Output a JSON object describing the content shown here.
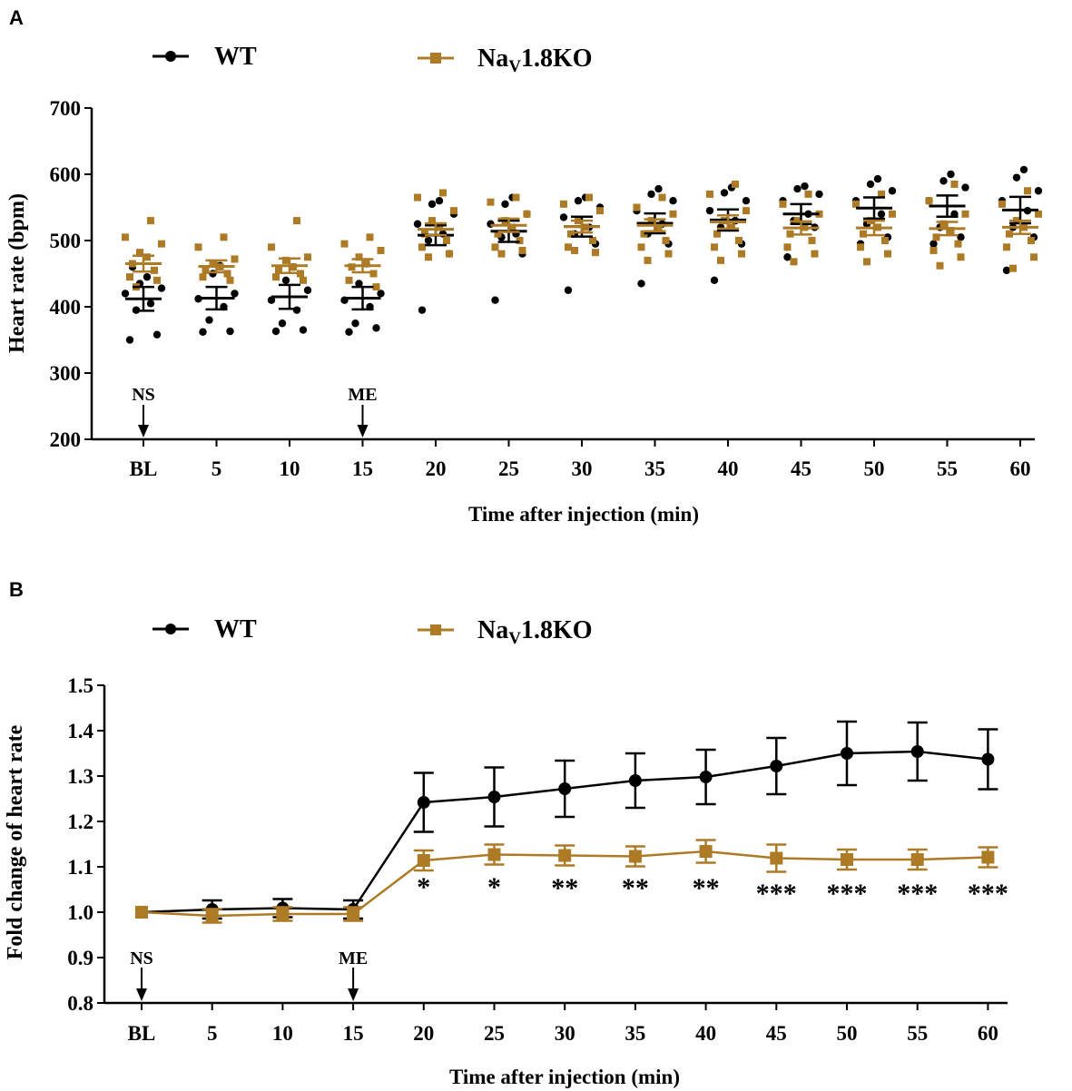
{
  "colors": {
    "wt": "#000000",
    "ko": "#AD7A26",
    "axis": "#000000"
  },
  "legend": {
    "wt": "WT",
    "ko_prefix": "Na",
    "ko_sub": "V",
    "ko_suffix": "1.8KO"
  },
  "chart_data": [
    {
      "panel": "A",
      "type": "scatter",
      "ylabel": "Heart rate (bpm)",
      "xlabel": "Time after injection (min)",
      "categories": [
        "BL",
        "5",
        "10",
        "15",
        "20",
        "25",
        "30",
        "35",
        "40",
        "45",
        "50",
        "55",
        "60"
      ],
      "ylim": [
        200,
        700
      ],
      "yticks": [
        200,
        300,
        400,
        500,
        600,
        700
      ],
      "annotations": [
        {
          "text": "NS",
          "category": "BL"
        },
        {
          "text": "ME",
          "category": "15"
        }
      ],
      "series": [
        {
          "name": "WT",
          "marker": "circle",
          "mean": [
            412,
            413,
            415,
            413,
            508,
            514,
            521,
            526,
            531,
            540,
            549,
            552,
            546
          ],
          "sem": [
            18,
            17,
            18,
            17,
            15,
            16,
            15,
            15,
            16,
            15,
            16,
            16,
            20
          ],
          "points": [
            [
              350,
              358,
              395,
              405,
              420,
              428,
              435,
              445,
              460
            ],
            [
              362,
              363,
              380,
              400,
              412,
              420,
              450,
              462
            ],
            [
              363,
              365,
              375,
              395,
              410,
              425,
              440,
              460
            ],
            [
              362,
              368,
              375,
              400,
              410,
              420,
              435,
              465
            ],
            [
              395,
              480,
              500,
              510,
              525,
              540,
              555,
              560
            ],
            [
              410,
              480,
              505,
              510,
              525,
              540,
              555,
              565
            ],
            [
              425,
              495,
              510,
              520,
              535,
              550,
              560,
              565
            ],
            [
              435,
              495,
              510,
              525,
              545,
              560,
              570,
              578
            ],
            [
              440,
              495,
              520,
              530,
              545,
              560,
              572,
              580
            ],
            [
              475,
              520,
              530,
              540,
              560,
              570,
              578,
              582
            ],
            [
              495,
              505,
              525,
              540,
              560,
              575,
              585,
              593
            ],
            [
              495,
              505,
              520,
              540,
              560,
              580,
              590,
              600
            ],
            [
              455,
              505,
              520,
              545,
              560,
              575,
              595,
              607
            ]
          ]
        },
        {
          "name": "NaV1.8KO",
          "marker": "square",
          "mean": [
            465,
            461,
            462,
            462,
            517,
            523,
            521,
            523,
            528,
            519,
            519,
            518,
            520
          ],
          "sem": [
            12,
            9,
            11,
            10,
            9,
            10,
            9,
            9,
            10,
            10,
            11,
            10,
            10
          ],
          "points": [
            [
              530,
              505,
              495,
              482,
              475,
              465,
              455,
              445,
              440,
              430
            ],
            [
              505,
              490,
              472,
              465,
              460,
              455,
              450,
              445,
              440
            ],
            [
              530,
              490,
              475,
              470,
              460,
              455,
              450,
              445,
              440
            ],
            [
              505,
              495,
              485,
              475,
              465,
              460,
              450,
              440,
              430
            ],
            [
              572,
              565,
              545,
              530,
              520,
              510,
              500,
              490,
              480,
              475
            ],
            [
              565,
              558,
              540,
              530,
              520,
              510,
              500,
              490,
              485,
              480
            ],
            [
              565,
              555,
              545,
              530,
              520,
              510,
              500,
              490,
              482,
              485
            ],
            [
              565,
              550,
              540,
              530,
              520,
              510,
              500,
              490,
              480,
              470
            ],
            [
              585,
              570,
              545,
              530,
              520,
              510,
              500,
              490,
              480,
              470
            ],
            [
              570,
              555,
              540,
              530,
              520,
              510,
              500,
              490,
              480,
              468
            ],
            [
              570,
              555,
              540,
              530,
              520,
              510,
              500,
              490,
              480,
              468
            ],
            [
              585,
              560,
              540,
              525,
              515,
              505,
              495,
              485,
              475,
              462
            ],
            [
              575,
              555,
              540,
              530,
              520,
              510,
              500,
              490,
              475,
              458
            ]
          ]
        }
      ]
    },
    {
      "panel": "B",
      "type": "line",
      "ylabel": "Fold change of heart rate",
      "xlabel": "Time after injection (min)",
      "categories": [
        "BL",
        "5",
        "10",
        "15",
        "20",
        "25",
        "30",
        "35",
        "40",
        "45",
        "50",
        "55",
        "60"
      ],
      "ylim": [
        0.8,
        1.5
      ],
      "yticks": [
        "0.8",
        "0.9",
        "1.0",
        "1.1",
        "1.2",
        "1.3",
        "1.4",
        "1.5"
      ],
      "annotations": [
        {
          "text": "NS",
          "category": "BL"
        },
        {
          "text": "ME",
          "category": "15"
        }
      ],
      "significance": [
        "",
        "",
        "",
        "",
        "*",
        "*",
        "**",
        "**",
        "**",
        "***",
        "***",
        "***",
        "***"
      ],
      "series": [
        {
          "name": "WT",
          "marker": "circle",
          "values": [
            1.0,
            1.006,
            1.009,
            1.006,
            1.242,
            1.254,
            1.272,
            1.29,
            1.298,
            1.322,
            1.35,
            1.354,
            1.337
          ],
          "sem": [
            0,
            0.02,
            0.02,
            0.02,
            0.065,
            0.065,
            0.062,
            0.06,
            0.06,
            0.062,
            0.07,
            0.064,
            0.066
          ]
        },
        {
          "name": "NaV1.8KO",
          "marker": "square",
          "values": [
            1.0,
            0.992,
            0.996,
            0.996,
            1.114,
            1.127,
            1.125,
            1.123,
            1.134,
            1.119,
            1.116,
            1.116,
            1.121
          ],
          "sem": [
            0,
            0.015,
            0.015,
            0.015,
            0.022,
            0.022,
            0.022,
            0.022,
            0.025,
            0.03,
            0.022,
            0.022,
            0.022
          ]
        }
      ]
    }
  ]
}
